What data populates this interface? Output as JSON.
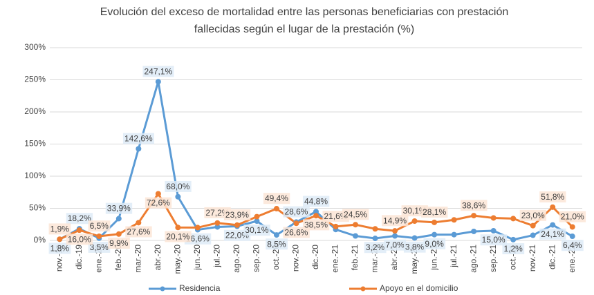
{
  "chart_data": {
    "type": "line",
    "title": [
      "Evolución del exceso de mortalidad entre las personas beneficiarias con prestación",
      "fallecidas según el lugar de la prestación (%)"
    ],
    "categories": [
      "nov.-19",
      "dic.-19",
      "ene.-20",
      "feb.-20",
      "mar.-20",
      "abr.-20",
      "may.-20",
      "jun.-20",
      "jul.-20",
      "ago.-20",
      "sep.-20",
      "oct.-20",
      "nov.-20",
      "dic.-20",
      "ene.-21",
      "feb.-21",
      "mar.-21",
      "abr.-21",
      "may.-21",
      "jun.-21",
      "jul.-21",
      "ago.-21",
      "sep.-21",
      "oct.-21",
      "nov.-21",
      "dic.-21",
      "ene.-22"
    ],
    "series": [
      {
        "name": "Residencia",
        "color": "#5b9bd5",
        "values": [
          1.8,
          18.2,
          3.5,
          33.9,
          142.6,
          247.1,
          68.0,
          16.6,
          21,
          22.0,
          30.1,
          8.5,
          28.6,
          44.8,
          17,
          7,
          3.2,
          7.0,
          3.8,
          9.0,
          9,
          14,
          15.0,
          1.2,
          8,
          24.1,
          6.4
        ],
        "value_labels": [
          "1,8%",
          "18,2%",
          "3,5%",
          "33,9%",
          "142,6%",
          "247,1%",
          "68,0%",
          "16,6%",
          null,
          "22,0%",
          "30,1%",
          "8,5%",
          "28,6%",
          "44,8%",
          null,
          null,
          "3,2%",
          "7,0%",
          "3,8%",
          "9,0%",
          null,
          null,
          "15,0%",
          "1,2%",
          null,
          "24,1%",
          "6,4%"
        ]
      },
      {
        "name": "Apoyo en el domicilio",
        "color": "#ed7d31",
        "values": [
          1.9,
          16.0,
          6.5,
          9.9,
          27.6,
          72.6,
          20.1,
          20,
          27.2,
          23.9,
          37,
          49.4,
          26.6,
          38.5,
          21.6,
          24.5,
          18,
          14.9,
          30.1,
          28.1,
          32,
          38.6,
          35,
          34,
          23.0,
          51.8,
          21.0
        ],
        "value_labels": [
          "1,9%",
          "16,0%",
          "6,5%",
          "9,9%",
          "27,6%",
          "72,6%",
          "20,1%",
          null,
          "27,2%",
          "23,9%",
          null,
          "49,4%",
          "26,6%",
          "38,5%",
          "21,6%",
          "24,5%",
          null,
          "14,9%",
          "30,1%",
          "28,1%",
          null,
          "38,6%",
          null,
          null,
          "23,0%",
          "51,8%",
          "21,0%"
        ]
      }
    ],
    "ylim": [
      0,
      300
    ],
    "yticks": [
      {
        "value": 0,
        "label": "0%"
      },
      {
        "value": 50,
        "label": "50%"
      },
      {
        "value": 100,
        "label": "100%"
      },
      {
        "value": 150,
        "label": "150%"
      },
      {
        "value": 200,
        "label": "200%"
      },
      {
        "value": 250,
        "label": "250%"
      },
      {
        "value": 300,
        "label": "300%"
      }
    ],
    "grid": true,
    "legend": "bottom"
  }
}
